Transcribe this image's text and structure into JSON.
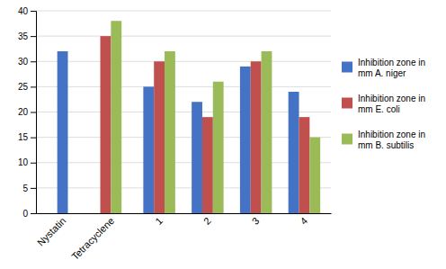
{
  "chart_data": {
    "type": "bar",
    "categories": [
      "Nystatin",
      "Tetracyclene",
      "1",
      "2",
      "3",
      "4"
    ],
    "series": [
      {
        "name": "Inhibition zone in\nmm A. niger",
        "color": "#4472C4",
        "values": [
          32,
          null,
          25,
          22,
          29,
          24
        ]
      },
      {
        "name": "Inhibition zone in\nmm E. coli",
        "color": "#C0504D",
        "values": [
          null,
          35,
          30,
          19,
          30,
          19
        ]
      },
      {
        "name": "Inhibition zone in\nmm B. subtilis",
        "color": "#9BBB59",
        "values": [
          null,
          38,
          32,
          26,
          32,
          15
        ]
      }
    ],
    "ylim": [
      0,
      40
    ],
    "yticks": [
      0,
      5,
      10,
      15,
      20,
      25,
      30,
      35,
      40
    ],
    "grid": true,
    "legend": "right"
  }
}
